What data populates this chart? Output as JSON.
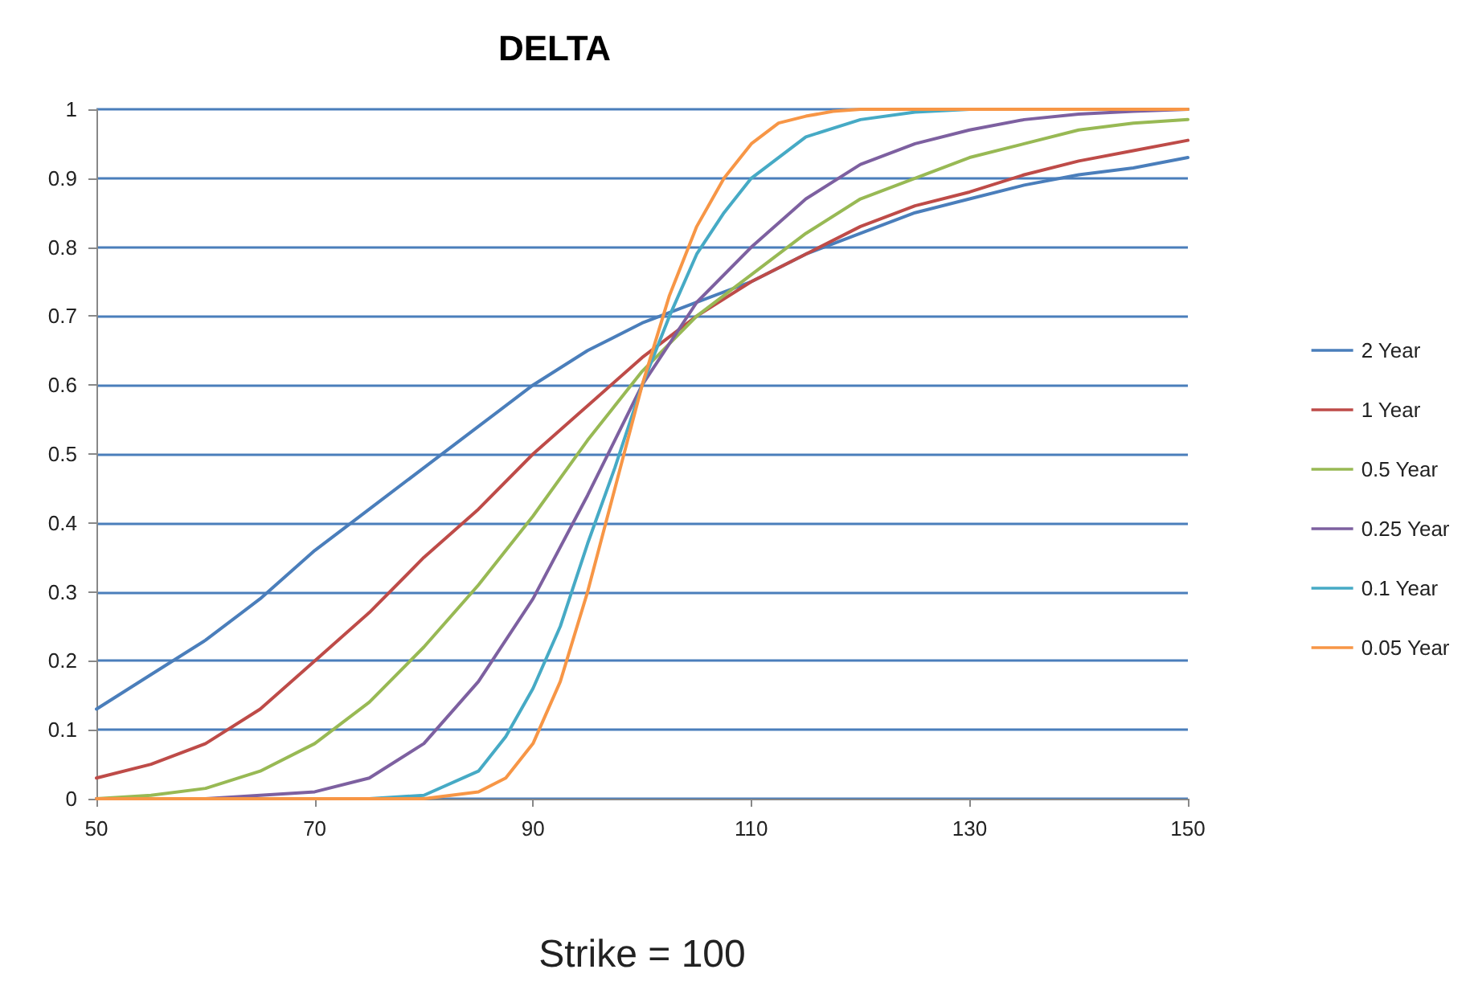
{
  "chart_data": {
    "type": "line",
    "title": "DELTA",
    "xlabel": "Strike = 100",
    "x": [
      50,
      55,
      60,
      65,
      70,
      75,
      80,
      85,
      90,
      95,
      100,
      105,
      110,
      115,
      120,
      125,
      130,
      135,
      140,
      145,
      150
    ],
    "series": [
      {
        "name": "2 Year",
        "color": "#4a7ebb",
        "values": [
          0.13,
          0.18,
          0.23,
          0.29,
          0.36,
          0.42,
          0.48,
          0.54,
          0.6,
          0.65,
          0.69,
          0.72,
          0.75,
          0.79,
          0.82,
          0.85,
          0.87,
          0.89,
          0.905,
          0.915,
          0.93
        ]
      },
      {
        "name": "1 Year",
        "color": "#be4b48",
        "values": [
          0.03,
          0.05,
          0.08,
          0.13,
          0.2,
          0.27,
          0.35,
          0.42,
          0.5,
          0.57,
          0.64,
          0.7,
          0.75,
          0.79,
          0.83,
          0.86,
          0.88,
          0.905,
          0.925,
          0.94,
          0.955
        ]
      },
      {
        "name": "0.5 Year",
        "color": "#98b954",
        "values": [
          0,
          0.005,
          0.015,
          0.04,
          0.08,
          0.14,
          0.22,
          0.31,
          0.41,
          0.52,
          0.62,
          0.7,
          0.76,
          0.82,
          0.87,
          0.9,
          0.93,
          0.95,
          0.97,
          0.98,
          0.985
        ]
      },
      {
        "name": "0.25 Year",
        "color": "#7d60a0",
        "values": [
          0,
          0,
          0,
          0.005,
          0.01,
          0.03,
          0.08,
          0.17,
          0.29,
          0.44,
          0.6,
          0.72,
          0.8,
          0.87,
          0.92,
          0.95,
          0.97,
          0.985,
          0.993,
          0.997,
          1
        ]
      },
      {
        "name": "0.1 Year",
        "color": "#46aac5",
        "x": [
          70,
          75,
          80,
          85,
          87.5,
          90,
          92.5,
          95,
          97.5,
          100,
          102.5,
          105,
          107.5,
          110,
          112.5,
          115,
          120,
          125,
          130,
          140,
          150
        ],
        "values": [
          0,
          0,
          0.005,
          0.04,
          0.09,
          0.16,
          0.25,
          0.37,
          0.48,
          0.6,
          0.7,
          0.79,
          0.85,
          0.9,
          0.93,
          0.96,
          0.985,
          0.996,
          1,
          1,
          1
        ]
      },
      {
        "name": "0.05 Year",
        "color": "#f79646",
        "x": [
          50,
          60,
          70,
          80,
          85,
          87.5,
          90,
          92.5,
          95,
          97.5,
          100,
          102.5,
          105,
          107.5,
          110,
          112.5,
          115,
          117.5,
          120,
          130,
          140,
          150
        ],
        "values": [
          0,
          0,
          0,
          0,
          0.01,
          0.03,
          0.08,
          0.17,
          0.3,
          0.45,
          0.6,
          0.73,
          0.83,
          0.9,
          0.95,
          0.98,
          0.99,
          0.997,
          1,
          1,
          1,
          1
        ]
      }
    ],
    "xlim": [
      50,
      150
    ],
    "xticks": [
      50,
      70,
      90,
      110,
      130,
      150
    ],
    "ylim": [
      0,
      1
    ],
    "yticks": [
      0,
      0.1,
      0.2,
      0.3,
      0.4,
      0.5,
      0.6,
      0.7,
      0.8,
      0.9,
      1
    ],
    "grid": "y",
    "legend": "right",
    "marker": "none",
    "line_style": "solid"
  }
}
